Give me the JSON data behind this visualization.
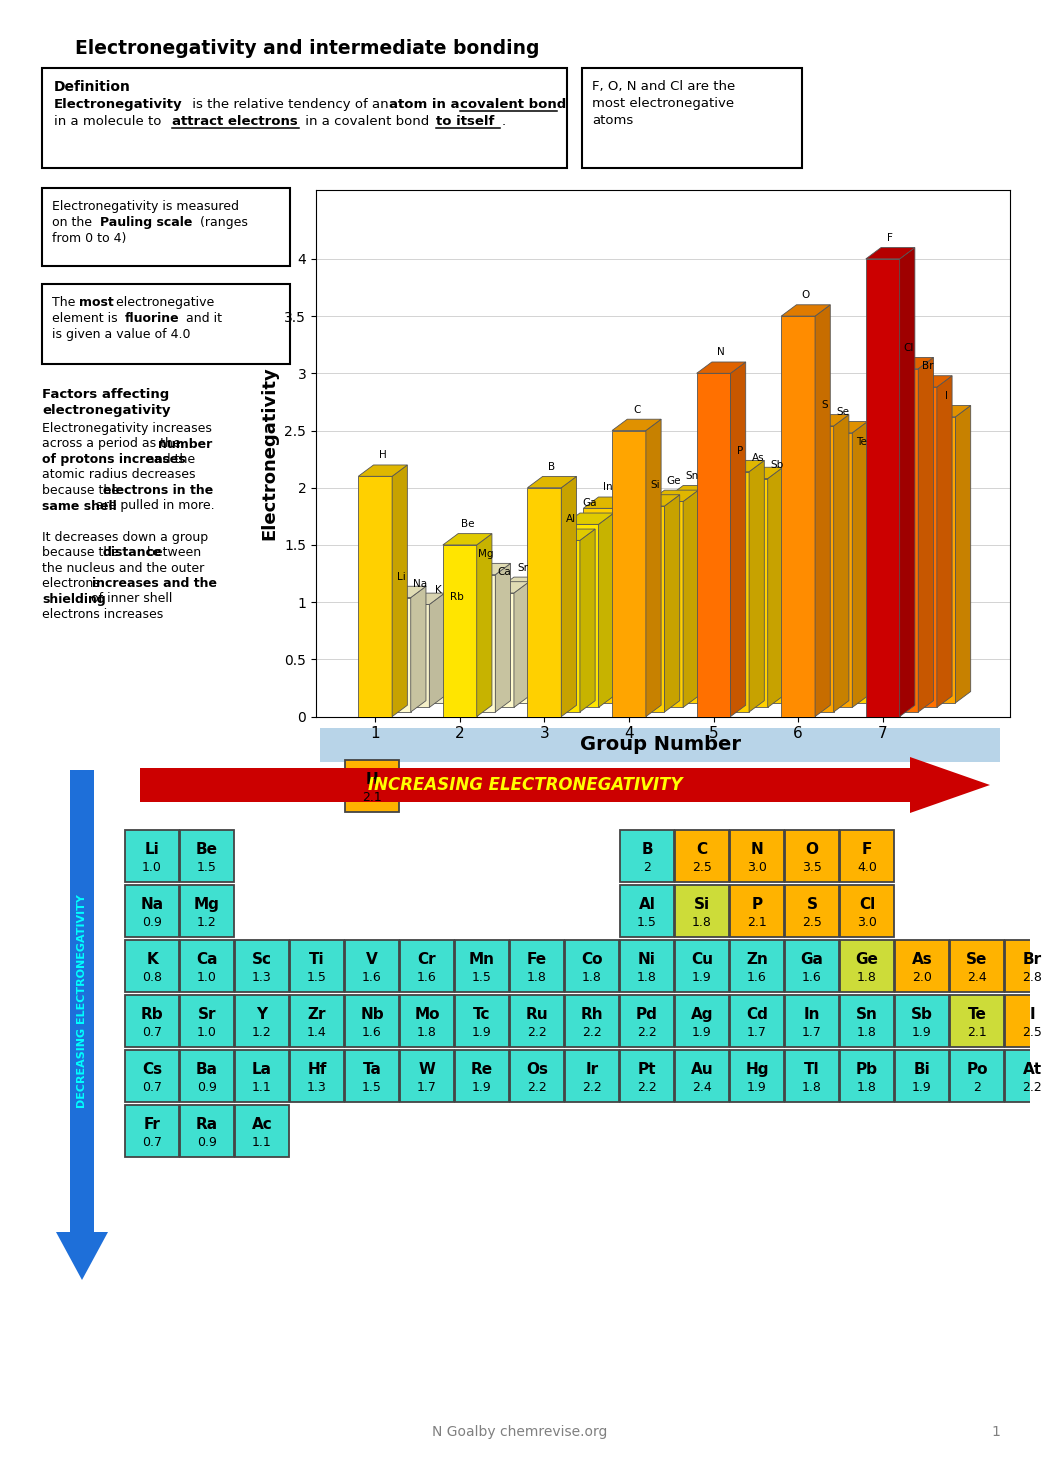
{
  "title": "Electronegativity and intermediate bonding",
  "chart_ylabel": "Electronegativity",
  "chart_xlabel": "Group Number",
  "increasing_arrow_text": "INCREASING ELECTRONEGATIVITY",
  "decreasing_arrow_text": "DECREASING ELECTRONEGATIVITY",
  "bg_color": "#FFFFFF",
  "periodic_table": {
    "H": {
      "row": 0,
      "col": 4,
      "val": "2.1",
      "color": "#FFB300"
    },
    "Li": {
      "row": 1,
      "col": 0,
      "val": "1.0",
      "color": "#40E0D0"
    },
    "Be": {
      "row": 1,
      "col": 1,
      "val": "1.5",
      "color": "#40E0D0"
    },
    "B": {
      "row": 1,
      "col": 9,
      "val": "2",
      "color": "#40E0D0"
    },
    "C": {
      "row": 1,
      "col": 10,
      "val": "2.5",
      "color": "#FFB300"
    },
    "N": {
      "row": 1,
      "col": 11,
      "val": "3.0",
      "color": "#FFB300"
    },
    "O": {
      "row": 1,
      "col": 12,
      "val": "3.5",
      "color": "#FFB300"
    },
    "F": {
      "row": 1,
      "col": 13,
      "val": "4.0",
      "color": "#FFB300"
    },
    "Na": {
      "row": 2,
      "col": 0,
      "val": "0.9",
      "color": "#40E0D0"
    },
    "Mg": {
      "row": 2,
      "col": 1,
      "val": "1.2",
      "color": "#40E0D0"
    },
    "Al": {
      "row": 2,
      "col": 9,
      "val": "1.5",
      "color": "#40E0D0"
    },
    "Si": {
      "row": 2,
      "col": 10,
      "val": "1.8",
      "color": "#CDDC39"
    },
    "P": {
      "row": 2,
      "col": 11,
      "val": "2.1",
      "color": "#FFB300"
    },
    "S": {
      "row": 2,
      "col": 12,
      "val": "2.5",
      "color": "#FFB300"
    },
    "Cl": {
      "row": 2,
      "col": 13,
      "val": "3.0",
      "color": "#FFB300"
    },
    "K": {
      "row": 3,
      "col": 0,
      "val": "0.8",
      "color": "#40E0D0"
    },
    "Ca": {
      "row": 3,
      "col": 1,
      "val": "1.0",
      "color": "#40E0D0"
    },
    "Sc": {
      "row": 3,
      "col": 2,
      "val": "1.3",
      "color": "#40E0D0"
    },
    "Ti": {
      "row": 3,
      "col": 3,
      "val": "1.5",
      "color": "#40E0D0"
    },
    "V": {
      "row": 3,
      "col": 4,
      "val": "1.6",
      "color": "#40E0D0"
    },
    "Cr": {
      "row": 3,
      "col": 5,
      "val": "1.6",
      "color": "#40E0D0"
    },
    "Mn": {
      "row": 3,
      "col": 6,
      "val": "1.5",
      "color": "#40E0D0"
    },
    "Fe": {
      "row": 3,
      "col": 7,
      "val": "1.8",
      "color": "#40E0D0"
    },
    "Co": {
      "row": 3,
      "col": 8,
      "val": "1.8",
      "color": "#40E0D0"
    },
    "Ni": {
      "row": 3,
      "col": 9,
      "val": "1.8",
      "color": "#40E0D0"
    },
    "Cu": {
      "row": 3,
      "col": 10,
      "val": "1.9",
      "color": "#40E0D0"
    },
    "Zn": {
      "row": 3,
      "col": 11,
      "val": "1.6",
      "color": "#40E0D0"
    },
    "Ga": {
      "row": 3,
      "col": 12,
      "val": "1.6",
      "color": "#40E0D0"
    },
    "Ge": {
      "row": 3,
      "col": 13,
      "val": "1.8",
      "color": "#CDDC39"
    },
    "As": {
      "row": 3,
      "col": 14,
      "val": "2.0",
      "color": "#FFB300"
    },
    "Se": {
      "row": 3,
      "col": 15,
      "val": "2.4",
      "color": "#FFB300"
    },
    "Br": {
      "row": 3,
      "col": 16,
      "val": "2.8",
      "color": "#FFB300"
    },
    "Rb": {
      "row": 4,
      "col": 0,
      "val": "0.7",
      "color": "#40E0D0"
    },
    "Sr": {
      "row": 4,
      "col": 1,
      "val": "1.0",
      "color": "#40E0D0"
    },
    "Y": {
      "row": 4,
      "col": 2,
      "val": "1.2",
      "color": "#40E0D0"
    },
    "Zr": {
      "row": 4,
      "col": 3,
      "val": "1.4",
      "color": "#40E0D0"
    },
    "Nb": {
      "row": 4,
      "col": 4,
      "val": "1.6",
      "color": "#40E0D0"
    },
    "Mo": {
      "row": 4,
      "col": 5,
      "val": "1.8",
      "color": "#40E0D0"
    },
    "Tc": {
      "row": 4,
      "col": 6,
      "val": "1.9",
      "color": "#40E0D0"
    },
    "Ru": {
      "row": 4,
      "col": 7,
      "val": "2.2",
      "color": "#40E0D0"
    },
    "Rh": {
      "row": 4,
      "col": 8,
      "val": "2.2",
      "color": "#40E0D0"
    },
    "Pd": {
      "row": 4,
      "col": 9,
      "val": "2.2",
      "color": "#40E0D0"
    },
    "Ag": {
      "row": 4,
      "col": 10,
      "val": "1.9",
      "color": "#40E0D0"
    },
    "Cd": {
      "row": 4,
      "col": 11,
      "val": "1.7",
      "color": "#40E0D0"
    },
    "In": {
      "row": 4,
      "col": 12,
      "val": "1.7",
      "color": "#40E0D0"
    },
    "Sn": {
      "row": 4,
      "col": 13,
      "val": "1.8",
      "color": "#40E0D0"
    },
    "Sb": {
      "row": 4,
      "col": 14,
      "val": "1.9",
      "color": "#40E0D0"
    },
    "Te": {
      "row": 4,
      "col": 15,
      "val": "2.1",
      "color": "#CDDC39"
    },
    "I": {
      "row": 4,
      "col": 16,
      "val": "2.5",
      "color": "#FFB300"
    },
    "Cs": {
      "row": 5,
      "col": 0,
      "val": "0.7",
      "color": "#40E0D0"
    },
    "Ba": {
      "row": 5,
      "col": 1,
      "val": "0.9",
      "color": "#40E0D0"
    },
    "La": {
      "row": 5,
      "col": 2,
      "val": "1.1",
      "color": "#40E0D0"
    },
    "Hf": {
      "row": 5,
      "col": 3,
      "val": "1.3",
      "color": "#40E0D0"
    },
    "Ta": {
      "row": 5,
      "col": 4,
      "val": "1.5",
      "color": "#40E0D0"
    },
    "W": {
      "row": 5,
      "col": 5,
      "val": "1.7",
      "color": "#40E0D0"
    },
    "Re": {
      "row": 5,
      "col": 6,
      "val": "1.9",
      "color": "#40E0D0"
    },
    "Os": {
      "row": 5,
      "col": 7,
      "val": "2.2",
      "color": "#40E0D0"
    },
    "Ir": {
      "row": 5,
      "col": 8,
      "val": "2.2",
      "color": "#40E0D0"
    },
    "Pt": {
      "row": 5,
      "col": 9,
      "val": "2.2",
      "color": "#40E0D0"
    },
    "Au": {
      "row": 5,
      "col": 10,
      "val": "2.4",
      "color": "#40E0D0"
    },
    "Hg": {
      "row": 5,
      "col": 11,
      "val": "1.9",
      "color": "#40E0D0"
    },
    "Tl": {
      "row": 5,
      "col": 12,
      "val": "1.8",
      "color": "#40E0D0"
    },
    "Pb": {
      "row": 5,
      "col": 13,
      "val": "1.8",
      "color": "#40E0D0"
    },
    "Bi": {
      "row": 5,
      "col": 14,
      "val": "1.9",
      "color": "#40E0D0"
    },
    "Po": {
      "row": 5,
      "col": 15,
      "val": "2",
      "color": "#40E0D0"
    },
    "At": {
      "row": 5,
      "col": 16,
      "val": "2.2",
      "color": "#40E0D0"
    },
    "Fr": {
      "row": 6,
      "col": 0,
      "val": "0.7",
      "color": "#40E0D0"
    },
    "Ra": {
      "row": 6,
      "col": 1,
      "val": "0.9",
      "color": "#40E0D0"
    },
    "Ac": {
      "row": 6,
      "col": 2,
      "val": "1.1",
      "color": "#40E0D0"
    }
  }
}
